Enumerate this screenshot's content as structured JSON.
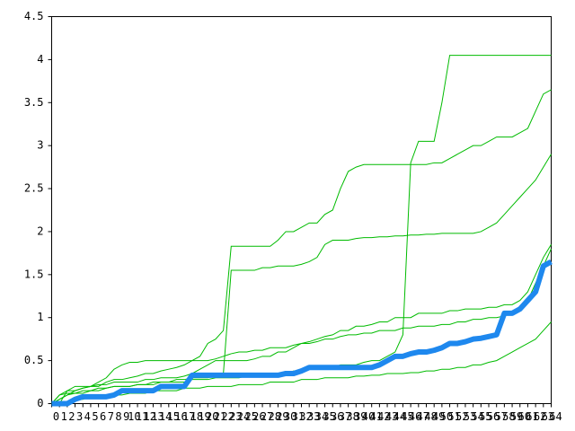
{
  "chart_data": {
    "type": "line",
    "x": [
      0,
      1,
      2,
      3,
      4,
      5,
      6,
      7,
      8,
      9,
      10,
      11,
      12,
      13,
      14,
      15,
      16,
      17,
      18,
      19,
      20,
      21,
      22,
      23,
      24,
      25,
      26,
      27,
      28,
      29,
      30,
      31,
      32,
      33,
      34,
      35,
      36,
      37,
      38,
      39,
      40,
      41,
      42,
      43,
      44,
      45,
      46,
      47,
      48,
      49,
      50,
      51,
      52,
      53,
      54,
      55,
      56,
      57,
      58,
      59,
      60,
      61,
      62,
      63,
      64
    ],
    "xlim": [
      0,
      64
    ],
    "xticks": [
      0,
      1,
      2,
      3,
      4,
      5,
      6,
      7,
      8,
      9,
      10,
      11,
      12,
      13,
      14,
      15,
      16,
      17,
      18,
      19,
      20,
      21,
      22,
      23,
      24,
      25,
      26,
      27,
      28,
      29,
      30,
      31,
      32,
      33,
      34,
      35,
      36,
      37,
      38,
      39,
      40,
      41,
      42,
      43,
      44,
      45,
      46,
      47,
      48,
      49,
      50,
      51,
      52,
      53,
      54,
      55,
      56,
      57,
      58,
      59,
      60,
      61,
      62,
      63,
      64
    ],
    "ylim": [
      0,
      4.5
    ],
    "yticks": [
      0,
      0.5,
      1,
      1.5,
      2,
      2.5,
      3,
      3.5,
      4,
      4.5
    ],
    "series": [
      {
        "color": "#00bb00",
        "values": [
          0,
          0.1,
          0.12,
          0.12,
          0.15,
          0.15,
          0.18,
          0.18,
          0.2,
          0.2,
          0.2,
          0.22,
          0.22,
          0.22,
          0.25,
          0.25,
          0.25,
          0.25,
          0.28,
          0.28,
          0.28,
          0.3,
          0.3,
          0.3,
          0.3,
          0.32,
          0.32,
          0.32,
          0.35,
          0.35,
          0.35,
          0.38,
          0.38,
          0.4,
          0.4,
          0.42,
          0.42,
          0.45,
          0.45,
          0.45,
          0.48,
          0.5,
          0.5,
          0.55,
          0.6,
          0.8,
          2.8,
          3.05,
          3.05,
          3.05,
          3.5,
          4.05,
          4.05,
          4.05,
          4.05,
          4.05,
          4.05,
          4.05,
          4.05,
          4.05,
          4.05,
          4.05,
          4.05,
          4.05,
          4.05
        ]
      },
      {
        "color": "#00bb00",
        "values": [
          0,
          0,
          0.15,
          0.15,
          0.18,
          0.2,
          0.2,
          0.25,
          0.28,
          0.28,
          0.3,
          0.32,
          0.35,
          0.35,
          0.38,
          0.4,
          0.42,
          0.45,
          0.5,
          0.55,
          0.7,
          0.75,
          0.85,
          1.83,
          1.83,
          1.83,
          1.83,
          1.83,
          1.83,
          1.9,
          2.0,
          2.0,
          2.05,
          2.1,
          2.1,
          2.2,
          2.25,
          2.5,
          2.7,
          2.75,
          2.78,
          2.78,
          2.78,
          2.78,
          2.78,
          2.78,
          2.78,
          2.78,
          2.78,
          2.8,
          2.8,
          2.85,
          2.9,
          2.95,
          3.0,
          3.0,
          3.05,
          3.1,
          3.1,
          3.1,
          3.15,
          3.2,
          3.4,
          3.6,
          3.65
        ]
      },
      {
        "color": "#00bb00",
        "values": [
          0,
          0.05,
          0.1,
          0.12,
          0.12,
          0.15,
          0.15,
          0.18,
          0.2,
          0.2,
          0.2,
          0.22,
          0.22,
          0.25,
          0.25,
          0.25,
          0.28,
          0.28,
          0.3,
          0.3,
          0.3,
          0.32,
          0.35,
          1.55,
          1.55,
          1.55,
          1.55,
          1.58,
          1.58,
          1.6,
          1.6,
          1.6,
          1.62,
          1.65,
          1.7,
          1.85,
          1.9,
          1.9,
          1.9,
          1.92,
          1.93,
          1.93,
          1.94,
          1.94,
          1.95,
          1.95,
          1.96,
          1.96,
          1.97,
          1.97,
          1.98,
          1.98,
          1.98,
          1.98,
          1.98,
          2.0,
          2.05,
          2.1,
          2.2,
          2.3,
          2.4,
          2.5,
          2.6,
          2.75,
          2.9
        ]
      },
      {
        "color": "#00bb00",
        "values": [
          0,
          0.1,
          0.15,
          0.2,
          0.2,
          0.2,
          0.22,
          0.22,
          0.25,
          0.25,
          0.25,
          0.25,
          0.28,
          0.28,
          0.3,
          0.3,
          0.3,
          0.32,
          0.35,
          0.4,
          0.45,
          0.5,
          0.5,
          0.5,
          0.5,
          0.5,
          0.52,
          0.55,
          0.55,
          0.6,
          0.6,
          0.65,
          0.7,
          0.72,
          0.75,
          0.78,
          0.8,
          0.85,
          0.85,
          0.9,
          0.9,
          0.92,
          0.95,
          0.95,
          1.0,
          1.0,
          1.0,
          1.05,
          1.05,
          1.05,
          1.05,
          1.08,
          1.08,
          1.1,
          1.1,
          1.1,
          1.12,
          1.12,
          1.15,
          1.15,
          1.2,
          1.3,
          1.5,
          1.7,
          1.85
        ]
      },
      {
        "color": "#00bb00",
        "values": [
          0,
          0,
          0.02,
          0.05,
          0.05,
          0.08,
          0.08,
          0.1,
          0.1,
          0.1,
          0.12,
          0.12,
          0.12,
          0.15,
          0.15,
          0.15,
          0.15,
          0.18,
          0.18,
          0.18,
          0.2,
          0.2,
          0.2,
          0.2,
          0.22,
          0.22,
          0.22,
          0.22,
          0.25,
          0.25,
          0.25,
          0.25,
          0.28,
          0.28,
          0.28,
          0.3,
          0.3,
          0.3,
          0.3,
          0.32,
          0.32,
          0.33,
          0.33,
          0.35,
          0.35,
          0.35,
          0.36,
          0.36,
          0.38,
          0.38,
          0.4,
          0.4,
          0.42,
          0.42,
          0.45,
          0.45,
          0.48,
          0.5,
          0.55,
          0.6,
          0.65,
          0.7,
          0.75,
          0.85,
          0.95
        ]
      },
      {
        "color": "#00bb00",
        "values": [
          0,
          0.05,
          0.1,
          0.15,
          0.18,
          0.2,
          0.25,
          0.3,
          0.4,
          0.45,
          0.48,
          0.48,
          0.5,
          0.5,
          0.5,
          0.5,
          0.5,
          0.5,
          0.5,
          0.5,
          0.5,
          0.52,
          0.55,
          0.58,
          0.6,
          0.6,
          0.62,
          0.62,
          0.65,
          0.65,
          0.65,
          0.68,
          0.7,
          0.7,
          0.72,
          0.75,
          0.75,
          0.78,
          0.8,
          0.8,
          0.82,
          0.82,
          0.85,
          0.85,
          0.85,
          0.88,
          0.88,
          0.9,
          0.9,
          0.9,
          0.92,
          0.92,
          0.95,
          0.95,
          0.98,
          0.98,
          1.0,
          1.0,
          1.02,
          1.05,
          1.1,
          1.2,
          1.4,
          1.6,
          1.8
        ]
      },
      {
        "color": "#1e88ee",
        "values": [
          0,
          0,
          0,
          0.05,
          0.08,
          0.08,
          0.08,
          0.08,
          0.1,
          0.15,
          0.15,
          0.15,
          0.15,
          0.15,
          0.2,
          0.2,
          0.2,
          0.2,
          0.33,
          0.33,
          0.33,
          0.33,
          0.33,
          0.33,
          0.33,
          0.33,
          0.33,
          0.33,
          0.33,
          0.33,
          0.35,
          0.35,
          0.38,
          0.42,
          0.42,
          0.42,
          0.42,
          0.42,
          0.42,
          0.42,
          0.42,
          0.42,
          0.45,
          0.5,
          0.55,
          0.55,
          0.58,
          0.6,
          0.6,
          0.62,
          0.65,
          0.7,
          0.7,
          0.72,
          0.75,
          0.76,
          0.78,
          0.8,
          1.05,
          1.05,
          1.1,
          1.2,
          1.3,
          1.6,
          1.65
        ]
      }
    ]
  }
}
